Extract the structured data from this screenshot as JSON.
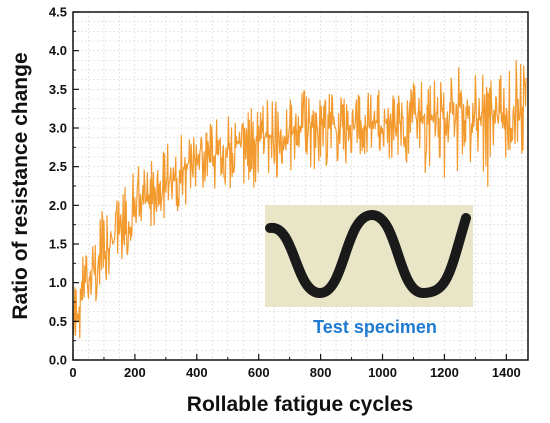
{
  "chart_data": {
    "type": "line",
    "xlabel": "Rollable fatigue cycles",
    "ylabel": "Ratio of resistance change",
    "xlim": [
      0,
      1470
    ],
    "ylim": [
      0,
      4.5
    ],
    "x_ticks": [
      "0",
      "200",
      "400",
      "600",
      "800",
      "1000",
      "1200",
      "1400"
    ],
    "y_ticks": [
      "0.0",
      "0.5",
      "1.0",
      "1.5",
      "2.0",
      "2.5",
      "3.0",
      "3.5",
      "4.0",
      "4.5"
    ],
    "grid": true,
    "line_color": "#f39a2e",
    "series": [
      {
        "name": "",
        "x": [
          0,
          25,
          50,
          75,
          100,
          125,
          150,
          175,
          200,
          225,
          250,
          275,
          300,
          325,
          350,
          375,
          400,
          425,
          450,
          475,
          500,
          525,
          550,
          575,
          600,
          625,
          650,
          675,
          700,
          725,
          750,
          775,
          800,
          825,
          850,
          875,
          900,
          925,
          950,
          975,
          1000,
          1025,
          1050,
          1075,
          1100,
          1125,
          1150,
          1175,
          1200,
          1225,
          1250,
          1275,
          1300,
          1325,
          1350,
          1375,
          1400,
          1425,
          1450,
          1465
        ],
        "mean": [
          0.2,
          0.8,
          1.0,
          1.15,
          1.35,
          1.5,
          1.62,
          1.75,
          1.9,
          2.0,
          2.1,
          2.18,
          2.25,
          2.32,
          2.38,
          2.45,
          2.52,
          2.58,
          2.62,
          2.68,
          2.72,
          2.76,
          2.8,
          2.83,
          2.86,
          2.88,
          2.9,
          2.92,
          2.94,
          2.96,
          2.98,
          2.99,
          3.0,
          3.0,
          3.01,
          3.02,
          3.03,
          3.04,
          3.05,
          3.06,
          3.07,
          3.08,
          3.08,
          3.09,
          3.1,
          3.1,
          3.11,
          3.12,
          3.12,
          3.13,
          3.14,
          3.15,
          3.15,
          3.16,
          3.17,
          3.18,
          3.2,
          3.22,
          3.25,
          3.3
        ],
        "upper": [
          1.0,
          1.3,
          1.45,
          1.7,
          2.0,
          2.05,
          2.15,
          2.3,
          2.45,
          2.75,
          2.6,
          2.65,
          2.8,
          2.85,
          2.95,
          3.0,
          2.95,
          3.1,
          3.05,
          3.15,
          3.2,
          3.2,
          3.4,
          3.35,
          3.3,
          3.4,
          3.4,
          3.35,
          3.4,
          3.45,
          3.5,
          3.45,
          3.4,
          3.5,
          3.4,
          3.45,
          3.5,
          3.5,
          3.6,
          3.5,
          3.55,
          3.6,
          3.55,
          3.6,
          3.65,
          3.7,
          3.7,
          3.65,
          3.6,
          3.75,
          3.8,
          3.75,
          3.8,
          3.75,
          3.8,
          3.9,
          4.0,
          4.2,
          4.1,
          3.95
        ],
        "lower": [
          0.0,
          0.3,
          0.6,
          0.75,
          0.9,
          1.05,
          1.2,
          1.35,
          1.5,
          1.55,
          1.7,
          1.75,
          1.8,
          1.9,
          1.95,
          2.0,
          2.05,
          2.1,
          2.1,
          2.15,
          2.2,
          2.25,
          2.25,
          2.2,
          2.25,
          2.3,
          2.35,
          2.3,
          2.4,
          2.4,
          2.45,
          2.4,
          2.5,
          2.45,
          2.5,
          2.5,
          2.55,
          2.45,
          2.5,
          2.55,
          2.6,
          2.55,
          2.6,
          2.55,
          2.45,
          2.4,
          2.35,
          2.3,
          2.05,
          2.4,
          2.45,
          2.5,
          2.5,
          2.45,
          1.9,
          2.55,
          2.6,
          2.6,
          2.65,
          2.7
        ]
      }
    ],
    "inset": {
      "caption": "Test specimen",
      "caption_color": "#1e7bd1",
      "photo_background": "#e9e6c8",
      "specimen_color": "#1a1a1a"
    }
  }
}
